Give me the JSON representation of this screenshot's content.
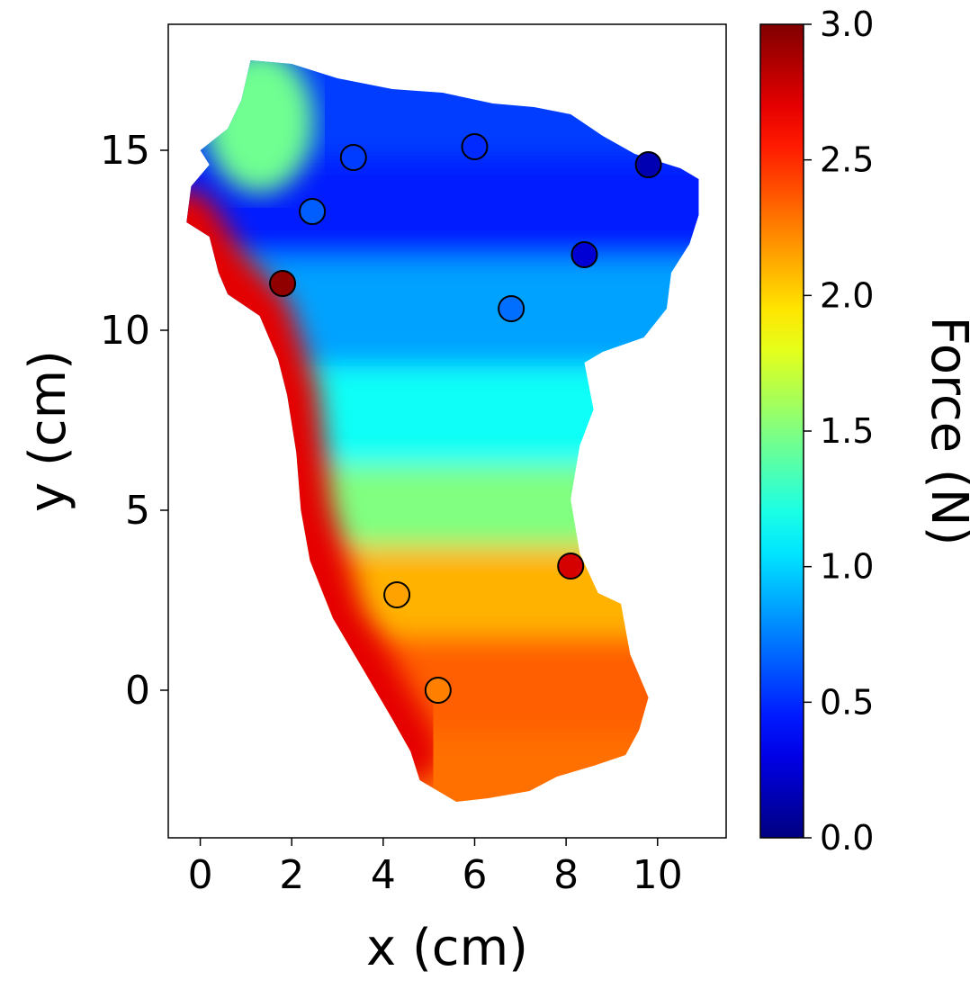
{
  "chart_data": {
    "type": "scatter",
    "title": "",
    "xlabel": "x (cm)",
    "ylabel": "y (cm)",
    "xlim": [
      -0.7,
      11.5
    ],
    "ylim": [
      -4.1,
      18.5
    ],
    "xticks": [
      0,
      2,
      4,
      6,
      8,
      10
    ],
    "yticks": [
      0,
      5,
      10,
      15
    ],
    "grid": false,
    "colorbar": {
      "label": "Force (N)",
      "range": [
        0.0,
        3.0
      ],
      "ticks": [
        "0.0",
        "0.5",
        "1.0",
        "1.5",
        "2.0",
        "2.5",
        "3.0"
      ],
      "colormap": "jet"
    },
    "background_field": {
      "description_type": "force-heatmap-within-foot-outline",
      "outline": [
        [
          1.1,
          17.5
        ],
        [
          2.0,
          17.4
        ],
        [
          3.0,
          17.0
        ],
        [
          4.2,
          16.7
        ],
        [
          5.3,
          16.6
        ],
        [
          6.4,
          16.3
        ],
        [
          7.3,
          16.2
        ],
        [
          8.1,
          16.0
        ],
        [
          8.8,
          15.4
        ],
        [
          9.5,
          14.9
        ],
        [
          10.5,
          14.5
        ],
        [
          10.9,
          14.2
        ],
        [
          10.9,
          13.2
        ],
        [
          10.7,
          12.4
        ],
        [
          10.3,
          11.6
        ],
        [
          10.2,
          10.6
        ],
        [
          9.7,
          9.8
        ],
        [
          8.8,
          9.4
        ],
        [
          8.4,
          9.1
        ],
        [
          8.6,
          7.8
        ],
        [
          8.3,
          6.8
        ],
        [
          8.1,
          5.3
        ],
        [
          8.3,
          3.8
        ],
        [
          8.7,
          2.7
        ],
        [
          9.2,
          2.4
        ],
        [
          9.4,
          1.0
        ],
        [
          9.8,
          -0.2
        ],
        [
          9.6,
          -1.1
        ],
        [
          9.3,
          -1.8
        ],
        [
          8.6,
          -2.1
        ],
        [
          7.8,
          -2.4
        ],
        [
          7.2,
          -2.8
        ],
        [
          6.3,
          -3.0
        ],
        [
          5.6,
          -3.1
        ],
        [
          4.8,
          -2.5
        ],
        [
          4.6,
          -1.7
        ],
        [
          4.2,
          -0.8
        ],
        [
          3.6,
          0.5
        ],
        [
          2.9,
          2.0
        ],
        [
          2.4,
          3.6
        ],
        [
          2.2,
          5.0
        ],
        [
          2.1,
          6.6
        ],
        [
          1.9,
          8.2
        ],
        [
          1.7,
          9.2
        ],
        [
          1.3,
          10.4
        ],
        [
          0.6,
          11.0
        ],
        [
          0.4,
          11.6
        ],
        [
          0.2,
          12.6
        ],
        [
          -0.3,
          13.0
        ],
        [
          -0.2,
          14.0
        ],
        [
          0.2,
          14.6
        ],
        [
          0.0,
          15.0
        ],
        [
          0.6,
          15.6
        ],
        [
          0.9,
          16.4
        ]
      ],
      "bands": [
        {
          "y": 16.2,
          "force": 0.55
        },
        {
          "y": 13.5,
          "force": 0.45
        },
        {
          "y": 10.5,
          "force": 0.85
        },
        {
          "y": 7.5,
          "force": 1.15
        },
        {
          "y": 5.0,
          "force": 1.5
        },
        {
          "y": 3.0,
          "force": 2.1
        },
        {
          "y": 0.0,
          "force": 2.35
        },
        {
          "y": -2.5,
          "force": 2.3
        }
      ],
      "edge_zone": {
        "force": 2.7
      }
    },
    "series": [
      {
        "marker": "circle",
        "points": [
          {
            "x": 1.8,
            "y": 11.3,
            "force": 2.95
          },
          {
            "x": 2.45,
            "y": 13.3,
            "force": 0.65
          },
          {
            "x": 3.35,
            "y": 14.8,
            "force": 0.55
          },
          {
            "x": 6.0,
            "y": 15.1,
            "force": 0.5
          },
          {
            "x": 9.8,
            "y": 14.6,
            "force": 0.15
          },
          {
            "x": 8.4,
            "y": 12.1,
            "force": 0.25
          },
          {
            "x": 6.8,
            "y": 10.6,
            "force": 0.7
          },
          {
            "x": 8.1,
            "y": 3.45,
            "force": 2.75
          },
          {
            "x": 4.3,
            "y": 2.65,
            "force": 2.15
          },
          {
            "x": 5.2,
            "y": 0.0,
            "force": 2.25
          }
        ]
      }
    ]
  }
}
